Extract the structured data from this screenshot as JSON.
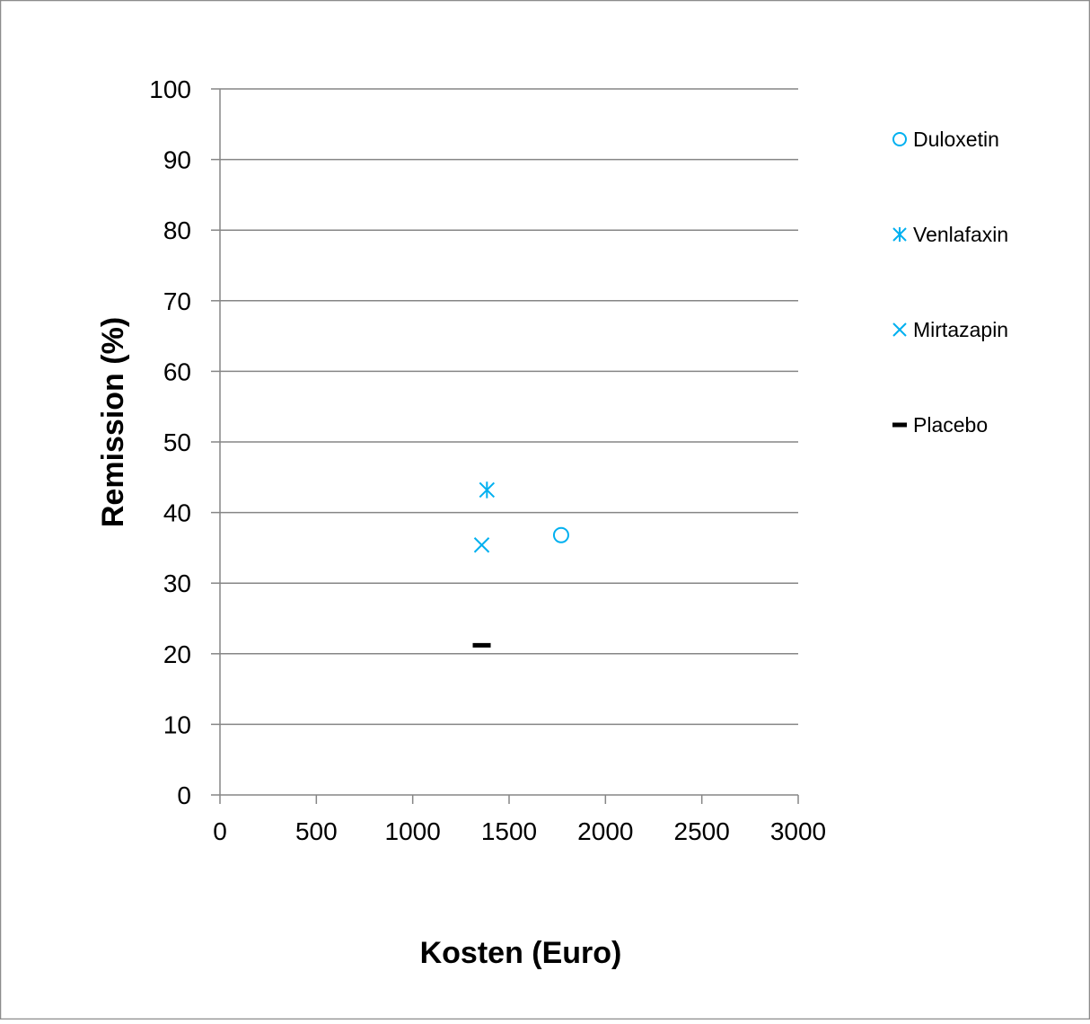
{
  "chart_data": {
    "type": "scatter",
    "title": "",
    "xlabel": "Kosten (Euro)",
    "ylabel": "Remission (%)",
    "xlim": [
      0,
      3000
    ],
    "ylim": [
      0,
      100
    ],
    "x_ticks": [
      0,
      500,
      1000,
      1500,
      2000,
      2500,
      3000
    ],
    "y_ticks": [
      0,
      10,
      20,
      30,
      40,
      50,
      60,
      70,
      80,
      90,
      100
    ],
    "x_tick_labels": [
      "0",
      "500",
      "1000",
      "1500",
      "2000",
      "2500",
      "3000"
    ],
    "y_tick_labels": [
      "0",
      "10",
      "20",
      "30",
      "40",
      "50",
      "60",
      "70",
      "80",
      "90",
      "100"
    ],
    "grid": "horizontal",
    "legend_position": "right",
    "series": [
      {
        "name": "Duloxetin",
        "marker": "circle",
        "color": "#00b0f0",
        "x": [
          1770
        ],
        "y": [
          36.8
        ]
      },
      {
        "name": "Venlafaxin",
        "marker": "asterisk",
        "color": "#00b0f0",
        "x": [
          1385
        ],
        "y": [
          43.2
        ]
      },
      {
        "name": "Mirtazapin",
        "marker": "x",
        "color": "#00b0f0",
        "x": [
          1358
        ],
        "y": [
          35.4
        ]
      },
      {
        "name": "Placebo",
        "marker": "dash",
        "color": "#000000",
        "x": [
          1358
        ],
        "y": [
          21.2
        ]
      }
    ]
  }
}
